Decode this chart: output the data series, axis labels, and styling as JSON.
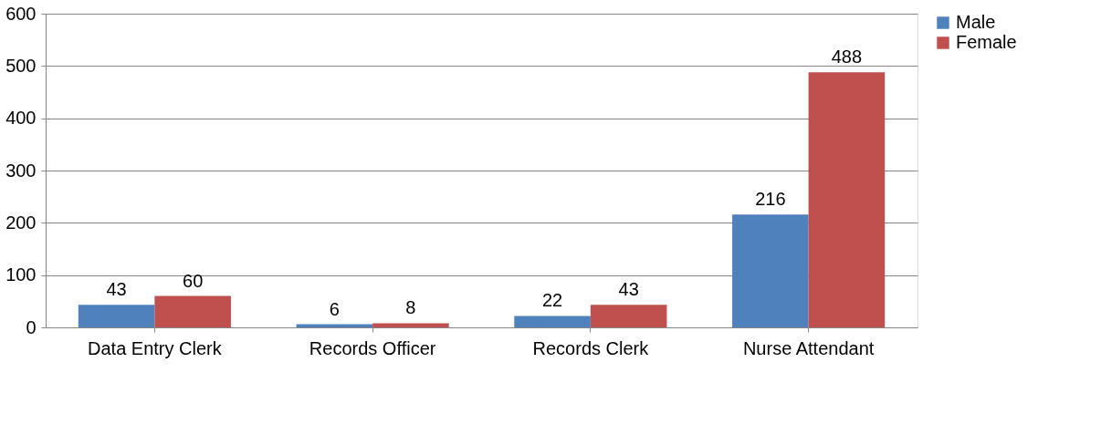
{
  "chart_data": {
    "type": "bar",
    "categories": [
      "Data Entry Clerk",
      "Records Officer",
      "Records Clerk",
      "Nurse Attendant"
    ],
    "series": [
      {
        "name": "Male",
        "color": "#4f81bd",
        "values": [
          43,
          6,
          22,
          216
        ]
      },
      {
        "name": "Female",
        "color": "#c0504d",
        "values": [
          60,
          8,
          43,
          488
        ]
      }
    ],
    "ylim": [
      0,
      600
    ],
    "yticks": [
      0,
      100,
      200,
      300,
      400,
      500,
      600
    ],
    "grid": "y",
    "legend": "right",
    "data_labels": true
  }
}
